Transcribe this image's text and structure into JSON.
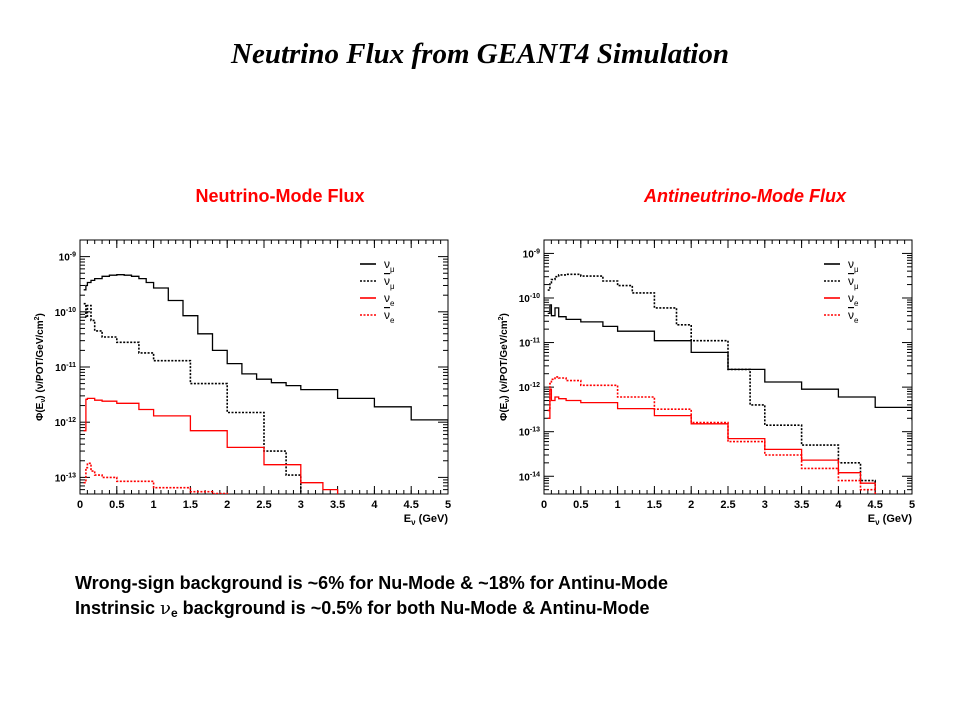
{
  "slide": {
    "title": "Neutrino Flux from GEANT4 Simulation",
    "note_line1": "Wrong-sign background is ~6% for Nu-Mode & ~18% for Antinu-Mode",
    "note_line2_before": "Instrinsic ",
    "note_line2_nu": "ν",
    "note_line2_sub": "e",
    "note_line2_after": " background is ~0.5% for both Nu-Mode & Antinu-Mode"
  },
  "colors": {
    "black": "#000000",
    "red": "#ff0000"
  },
  "chart_data": [
    {
      "type": "line",
      "title": "Neutrino-Mode Flux",
      "ylabel": "Φ(E_ν) (ν/POT/GeV/cm²)",
      "xlabel": "E_ν (GeV)",
      "xlim": [
        0,
        5
      ],
      "ylim": [
        5e-14,
        2e-09
      ],
      "yscale": "log",
      "xticks": [
        "0",
        "0.5",
        "1",
        "1.5",
        "2",
        "2.5",
        "3",
        "3.5",
        "4",
        "4.5",
        "5"
      ],
      "yticks": [
        {
          "value": 1e-09,
          "label": "10-9"
        },
        {
          "value": 1e-10,
          "label": "10-10"
        },
        {
          "value": 1e-11,
          "label": "10-11"
        },
        {
          "value": 1e-12,
          "label": "10-12"
        },
        {
          "value": 1e-13,
          "label": "10-13"
        }
      ],
      "legend_position": "top-right",
      "series": [
        {
          "name": "ν_μ",
          "label_base": "ν",
          "label_sub": "μ",
          "bar": false,
          "color": "#000000",
          "dash": "solid",
          "x": [
            0.05,
            0.08,
            0.1,
            0.15,
            0.2,
            0.3,
            0.4,
            0.5,
            0.6,
            0.7,
            0.8,
            0.9,
            1.0,
            1.2,
            1.4,
            1.6,
            1.8,
            2.0,
            2.2,
            2.4,
            2.6,
            2.8,
            3.0,
            3.5,
            4.0,
            4.5,
            5.0
          ],
          "y": [
            2.5e-10,
            3e-10,
            3.4e-10,
            3.7e-10,
            4e-10,
            4.4e-10,
            4.6e-10,
            4.7e-10,
            4.6e-10,
            4.4e-10,
            4e-10,
            3.4e-10,
            2.7e-10,
            1.6e-10,
            8.5e-11,
            4e-11,
            2e-11,
            1.15e-11,
            7.5e-12,
            6e-12,
            5.2e-12,
            4.6e-12,
            3.9e-12,
            2.7e-12,
            1.9e-12,
            1.1e-12,
            5.5e-13
          ]
        },
        {
          "name": "ν̄_μ",
          "label_base": "ν",
          "label_sub": "μ",
          "bar": true,
          "color": "#000000",
          "dash": "dashed",
          "x": [
            0.05,
            0.08,
            0.1,
            0.15,
            0.2,
            0.3,
            0.5,
            0.8,
            1.0,
            1.5,
            2.0,
            2.5,
            2.8,
            3.0
          ],
          "y": [
            1.4e-10,
            8e-11,
            1.3e-10,
            7e-11,
            4.5e-11,
            3.5e-11,
            2.8e-11,
            1.8e-11,
            1.3e-11,
            5e-12,
            1.5e-12,
            3e-13,
            1.1e-13,
            5e-14
          ]
        },
        {
          "name": "ν_e",
          "label_base": "ν",
          "label_sub": "e",
          "bar": false,
          "color": "#ff0000",
          "dash": "solid",
          "x": [
            0.05,
            0.08,
            0.1,
            0.2,
            0.3,
            0.5,
            0.8,
            1.0,
            1.5,
            2.0,
            2.5,
            3.0,
            3.3,
            3.5
          ],
          "y": [
            7e-13,
            2.6e-12,
            2.7e-12,
            2.5e-12,
            2.4e-12,
            2.2e-12,
            1.7e-12,
            1.3e-12,
            7e-13,
            3.5e-13,
            1.7e-13,
            8e-14,
            6e-14,
            5e-14
          ]
        },
        {
          "name": "ν̄_e",
          "label_base": "ν",
          "label_sub": "e",
          "bar": true,
          "color": "#ff0000",
          "dash": "dashed",
          "x": [
            0.05,
            0.08,
            0.1,
            0.15,
            0.2,
            0.3,
            0.5,
            1.0,
            1.5,
            1.8,
            2.0
          ],
          "y": [
            8e-14,
            1.5e-13,
            1.8e-13,
            1.3e-13,
            1.1e-13,
            1e-13,
            8.5e-14,
            6.5e-14,
            5.5e-14,
            5.1e-14,
            5e-14
          ]
        }
      ]
    },
    {
      "type": "line",
      "title": "Antineutrino-Mode Flux",
      "ylabel": "Φ(E_ν) (ν/POT/GeV/cm²)",
      "xlabel": "E_ν (GeV)",
      "xlim": [
        0,
        5
      ],
      "ylim": [
        4e-15,
        2e-09
      ],
      "yscale": "log",
      "xticks": [
        "0",
        "0.5",
        "1",
        "1.5",
        "2",
        "2.5",
        "3",
        "3.5",
        "4",
        "4.5",
        "5"
      ],
      "yticks": [
        {
          "value": 1e-09,
          "label": "10-9"
        },
        {
          "value": 1e-10,
          "label": "10-10"
        },
        {
          "value": 1e-11,
          "label": "10-11"
        },
        {
          "value": 1e-12,
          "label": "10-12"
        },
        {
          "value": 1e-13,
          "label": "10-13"
        },
        {
          "value": 1e-14,
          "label": "10-14"
        }
      ],
      "legend_position": "top-right",
      "series": [
        {
          "name": "ν_μ",
          "label_base": "ν",
          "label_sub": "μ",
          "bar": false,
          "color": "#000000",
          "dash": "solid",
          "x": [
            0.05,
            0.08,
            0.1,
            0.15,
            0.2,
            0.3,
            0.5,
            0.8,
            1.0,
            1.5,
            2.0,
            2.5,
            3.0,
            3.5,
            4.0,
            4.5,
            5.0
          ],
          "y": [
            4.5e-11,
            7e-11,
            4e-11,
            6e-11,
            3.8e-11,
            3.3e-11,
            2.9e-11,
            2.3e-11,
            1.8e-11,
            1.1e-11,
            6e-12,
            2.5e-12,
            1.3e-12,
            9e-13,
            6e-13,
            3.5e-13,
            1.8e-13
          ]
        },
        {
          "name": "ν̄_μ",
          "label_base": "ν",
          "label_sub": "μ",
          "bar": true,
          "color": "#000000",
          "dash": "dashed",
          "x": [
            0.05,
            0.08,
            0.1,
            0.15,
            0.2,
            0.3,
            0.5,
            0.8,
            1.0,
            1.2,
            1.5,
            1.8,
            2.0,
            2.5,
            2.8,
            3.0,
            3.5,
            4.0,
            4.3,
            4.5
          ],
          "y": [
            1.5e-10,
            2.2e-10,
            2.6e-10,
            3e-10,
            3.3e-10,
            3.4e-10,
            3.1e-10,
            2.4e-10,
            1.9e-10,
            1.3e-10,
            6e-11,
            2.5e-11,
            1.1e-11,
            2.5e-12,
            4e-13,
            1.4e-13,
            5e-14,
            2e-14,
            8e-15,
            5e-15
          ]
        },
        {
          "name": "ν_e",
          "label_base": "ν",
          "label_sub": "e",
          "bar": false,
          "color": "#ff0000",
          "dash": "solid",
          "x": [
            0.05,
            0.08,
            0.1,
            0.15,
            0.2,
            0.3,
            0.5,
            1.0,
            1.5,
            2.0,
            2.5,
            3.0,
            3.5,
            4.0,
            4.3,
            4.5
          ],
          "y": [
            2e-13,
            9e-13,
            5e-13,
            6e-13,
            5.5e-13,
            5e-13,
            4.5e-13,
            3.3e-13,
            2.3e-13,
            1.5e-13,
            7e-14,
            4e-14,
            2.3e-14,
            1.2e-14,
            7e-15,
            5e-15
          ]
        },
        {
          "name": "ν̄_e",
          "label_base": "ν",
          "label_sub": "e",
          "bar": true,
          "color": "#ff0000",
          "dash": "dashed",
          "x": [
            0.05,
            0.08,
            0.1,
            0.15,
            0.2,
            0.3,
            0.5,
            1.0,
            1.5,
            2.0,
            2.5,
            3.0,
            3.5,
            4.0,
            4.3,
            4.5
          ],
          "y": [
            3e-13,
            1.2e-12,
            1.5e-12,
            1.7e-12,
            1.6e-12,
            1.4e-12,
            1.1e-12,
            6e-13,
            3.2e-13,
            1.6e-13,
            6e-14,
            3e-14,
            1.5e-14,
            8e-15,
            5e-15,
            4e-15
          ]
        }
      ]
    }
  ]
}
